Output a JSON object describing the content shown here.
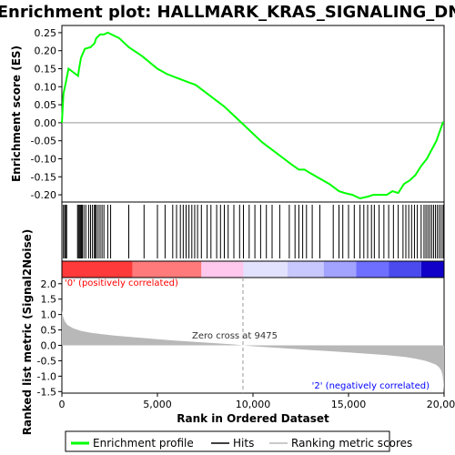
{
  "chart_data": {
    "type": "line",
    "title": "Enrichment plot: HALLMARK_KRAS_SIGNALING_DN",
    "xlabel": "Rank in Ordered Dataset",
    "es_ylabel": "Enrichment score (ES)",
    "metric_ylabel": "Ranked list metric (Signal2Noise)",
    "xlim": [
      0,
      20000
    ],
    "x_ticks": [
      0,
      5000,
      10000,
      15000,
      20000
    ],
    "x_tick_labels": [
      "0",
      "5,000",
      "10,000",
      "15,000",
      "20,000"
    ],
    "es_ylim": [
      -0.22,
      0.27
    ],
    "es_ticks": [
      0.25,
      0.2,
      0.15,
      0.1,
      0.05,
      0.0,
      -0.05,
      -0.1,
      -0.15,
      -0.2
    ],
    "es_tick_labels": [
      "0.25",
      "0.20",
      "0.15",
      "0.10",
      "0.05",
      "0.00",
      "-0.05",
      "-0.10",
      "-0.15",
      "-0.20"
    ],
    "metric_ylim": [
      -1.55,
      2.2
    ],
    "metric_ticks": [
      2.0,
      1.5,
      1.0,
      0.5,
      0.0,
      -0.5,
      -1.0,
      -1.5
    ],
    "metric_tick_labels": [
      "2.0",
      "1.5",
      "1.0",
      "0.5",
      "0.0",
      "-0.5",
      "-1.0",
      "-1.5"
    ],
    "enrichment_profile": {
      "name": "Enrichment profile",
      "color": "#00ff00",
      "x": [
        0,
        80,
        200,
        350,
        600,
        850,
        900,
        1000,
        1200,
        1500,
        1700,
        1800,
        2000,
        2200,
        2400,
        2600,
        3000,
        3500,
        4200,
        5000,
        5500,
        6000,
        6500,
        7000,
        7500,
        8000,
        8500,
        9000,
        9500,
        10000,
        10500,
        11000,
        11500,
        12000,
        12400,
        12700,
        13000,
        13500,
        14000,
        14500,
        14800,
        15200,
        15600,
        16000,
        16300,
        16700,
        17000,
        17300,
        17600,
        17900,
        18200,
        18500,
        18800,
        19100,
        19400,
        19600,
        19800,
        19950
      ],
      "y": [
        0.0,
        0.08,
        0.11,
        0.15,
        0.14,
        0.13,
        0.15,
        0.18,
        0.205,
        0.21,
        0.22,
        0.235,
        0.245,
        0.245,
        0.25,
        0.245,
        0.235,
        0.21,
        0.185,
        0.15,
        0.135,
        0.125,
        0.115,
        0.105,
        0.085,
        0.065,
        0.045,
        0.02,
        -0.005,
        -0.03,
        -0.055,
        -0.075,
        -0.095,
        -0.115,
        -0.13,
        -0.13,
        -0.14,
        -0.155,
        -0.17,
        -0.19,
        -0.195,
        -0.2,
        -0.21,
        -0.205,
        -0.2,
        -0.2,
        -0.2,
        -0.19,
        -0.195,
        -0.17,
        -0.16,
        -0.145,
        -0.12,
        -0.1,
        -0.07,
        -0.05,
        -0.02,
        0.003
      ]
    },
    "hits": {
      "name": "Hits",
      "color": "#000000",
      "x": [
        80,
        150,
        200,
        250,
        820,
        870,
        920,
        970,
        1020,
        1070,
        1150,
        1250,
        1400,
        1500,
        1600,
        1700,
        1750,
        1800,
        1900,
        2000,
        2100,
        2200,
        2400,
        2550,
        3500,
        4300,
        5000,
        5400,
        5800,
        6000,
        6200,
        6350,
        6500,
        6650,
        6800,
        6950,
        7100,
        7300,
        7600,
        7800,
        8100,
        8300,
        8500,
        8700,
        9000,
        9300,
        9500,
        9800,
        10100,
        10400,
        10700,
        11000,
        11400,
        11900,
        12200,
        12400,
        12600,
        12800,
        13100,
        13500,
        14200,
        14500,
        14700,
        15000,
        15300,
        15600,
        15800,
        16000,
        16200,
        16350,
        16600,
        16850,
        17100,
        17350,
        17600,
        17850,
        18000,
        18150,
        18300,
        18450,
        18600,
        18800,
        18950,
        19050,
        19150,
        19250,
        19350,
        19450,
        19550,
        19650,
        19750,
        19850,
        19950
      ]
    },
    "ranking_metric": {
      "name": "Ranking metric scores",
      "color": "#b8b8b8",
      "x": [
        0,
        50,
        150,
        300,
        600,
        1000,
        1500,
        2000,
        3000,
        4000,
        5000,
        6000,
        7000,
        8000,
        9000,
        9475,
        10000,
        11000,
        12000,
        13000,
        14000,
        15000,
        16000,
        17000,
        18000,
        18500,
        19000,
        19300,
        19550,
        19750,
        19850,
        19920,
        19960,
        20000
      ],
      "y": [
        1.15,
        0.95,
        0.78,
        0.66,
        0.55,
        0.47,
        0.41,
        0.37,
        0.3,
        0.25,
        0.2,
        0.15,
        0.11,
        0.07,
        0.03,
        0.0,
        -0.03,
        -0.07,
        -0.11,
        -0.15,
        -0.19,
        -0.23,
        -0.27,
        -0.32,
        -0.38,
        -0.43,
        -0.5,
        -0.56,
        -0.62,
        -0.72,
        -0.82,
        -0.96,
        -1.2,
        -1.5
      ]
    },
    "zero_cross_x": 9475,
    "zero_cross_label": "Zero cross at 9475",
    "pos_label": "'0' (positively correlated)",
    "neg_label": "'2' (negatively correlated)",
    "gradient_segments": [
      {
        "from": 0,
        "to": 3700,
        "color": "#ff3a3a"
      },
      {
        "from": 3700,
        "to": 7300,
        "color": "#ff7a7a"
      },
      {
        "from": 7300,
        "to": 9500,
        "color": "#ffc8ec"
      },
      {
        "from": 9500,
        "to": 11800,
        "color": "#e2e2ff"
      },
      {
        "from": 11800,
        "to": 13700,
        "color": "#c8c8ff"
      },
      {
        "from": 13700,
        "to": 15400,
        "color": "#a2a2ff"
      },
      {
        "from": 15400,
        "to": 17100,
        "color": "#6f6fff"
      },
      {
        "from": 17100,
        "to": 18800,
        "color": "#4a4aee"
      },
      {
        "from": 18800,
        "to": 20000,
        "color": "#1000c8"
      }
    ],
    "legend": [
      {
        "name": "Enrichment profile",
        "color": "#00ff00"
      },
      {
        "name": "Hits",
        "color": "#000000"
      },
      {
        "name": "Ranking metric scores",
        "color": "#b8b8b8"
      }
    ],
    "legend_position": "bottom"
  }
}
